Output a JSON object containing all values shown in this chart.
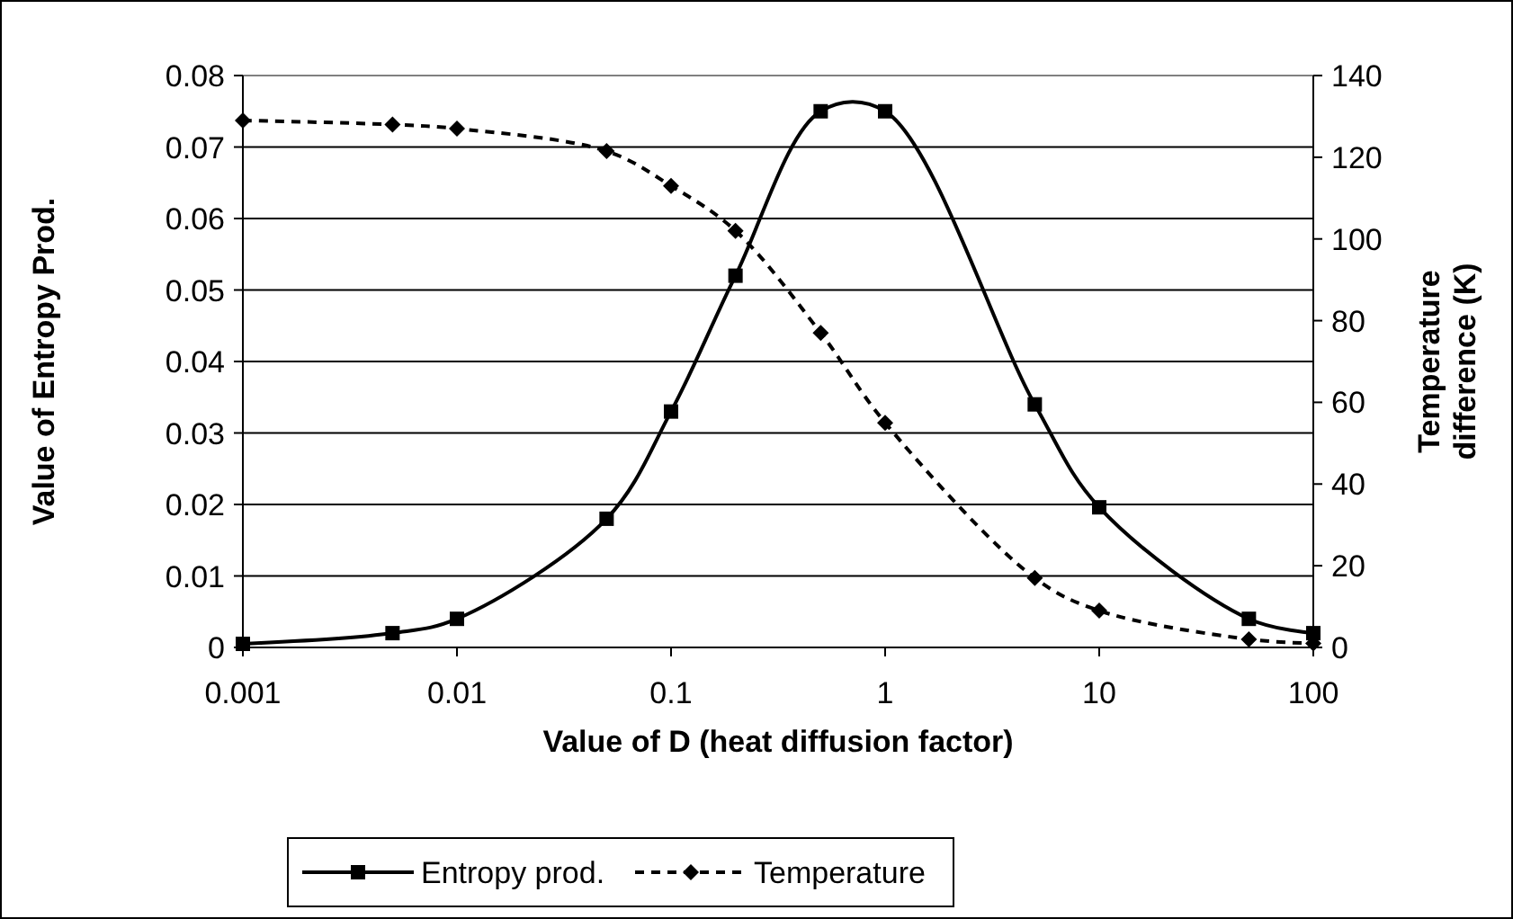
{
  "chart_data": {
    "type": "line",
    "xlabel": "Value of D (heat diffusion factor)",
    "ylabel": "Value of Entropy Prod.",
    "y2label": "Temperature difference (K)",
    "x": [
      0.001,
      0.005,
      0.01,
      0.05,
      0.1,
      0.2,
      0.5,
      1,
      5,
      10,
      50,
      100
    ],
    "series": [
      {
        "name": "Entropy prod.",
        "color": "#000000",
        "marker": "square",
        "line_style": "solid",
        "values": [
          0.0005,
          0.002,
          0.004,
          0.018,
          0.033,
          0.052,
          0.075,
          0.075,
          0.034,
          0.0196,
          0.004,
          0.002
        ]
      },
      {
        "name": "Temperature",
        "color": "#000000",
        "marker": "diamond",
        "line_style": "dashed",
        "axis": "y2",
        "values": [
          129,
          128,
          127,
          121.5,
          113,
          102,
          77,
          55,
          17,
          9,
          2,
          1
        ]
      }
    ],
    "log": "x",
    "xlim": [
      0.001,
      100
    ],
    "xticks": [
      0.001,
      0.01,
      0.1,
      1,
      10,
      100
    ],
    "ylim": [
      0,
      0.08
    ],
    "yticks": [
      0,
      0.01,
      0.02,
      0.03,
      0.04,
      0.05,
      0.06,
      0.07,
      0.08
    ],
    "y2lim": [
      0,
      140
    ],
    "y2ticks": [
      0,
      20,
      40,
      60,
      80,
      100,
      120,
      140
    ],
    "grid": "y",
    "legend": "bottom"
  }
}
